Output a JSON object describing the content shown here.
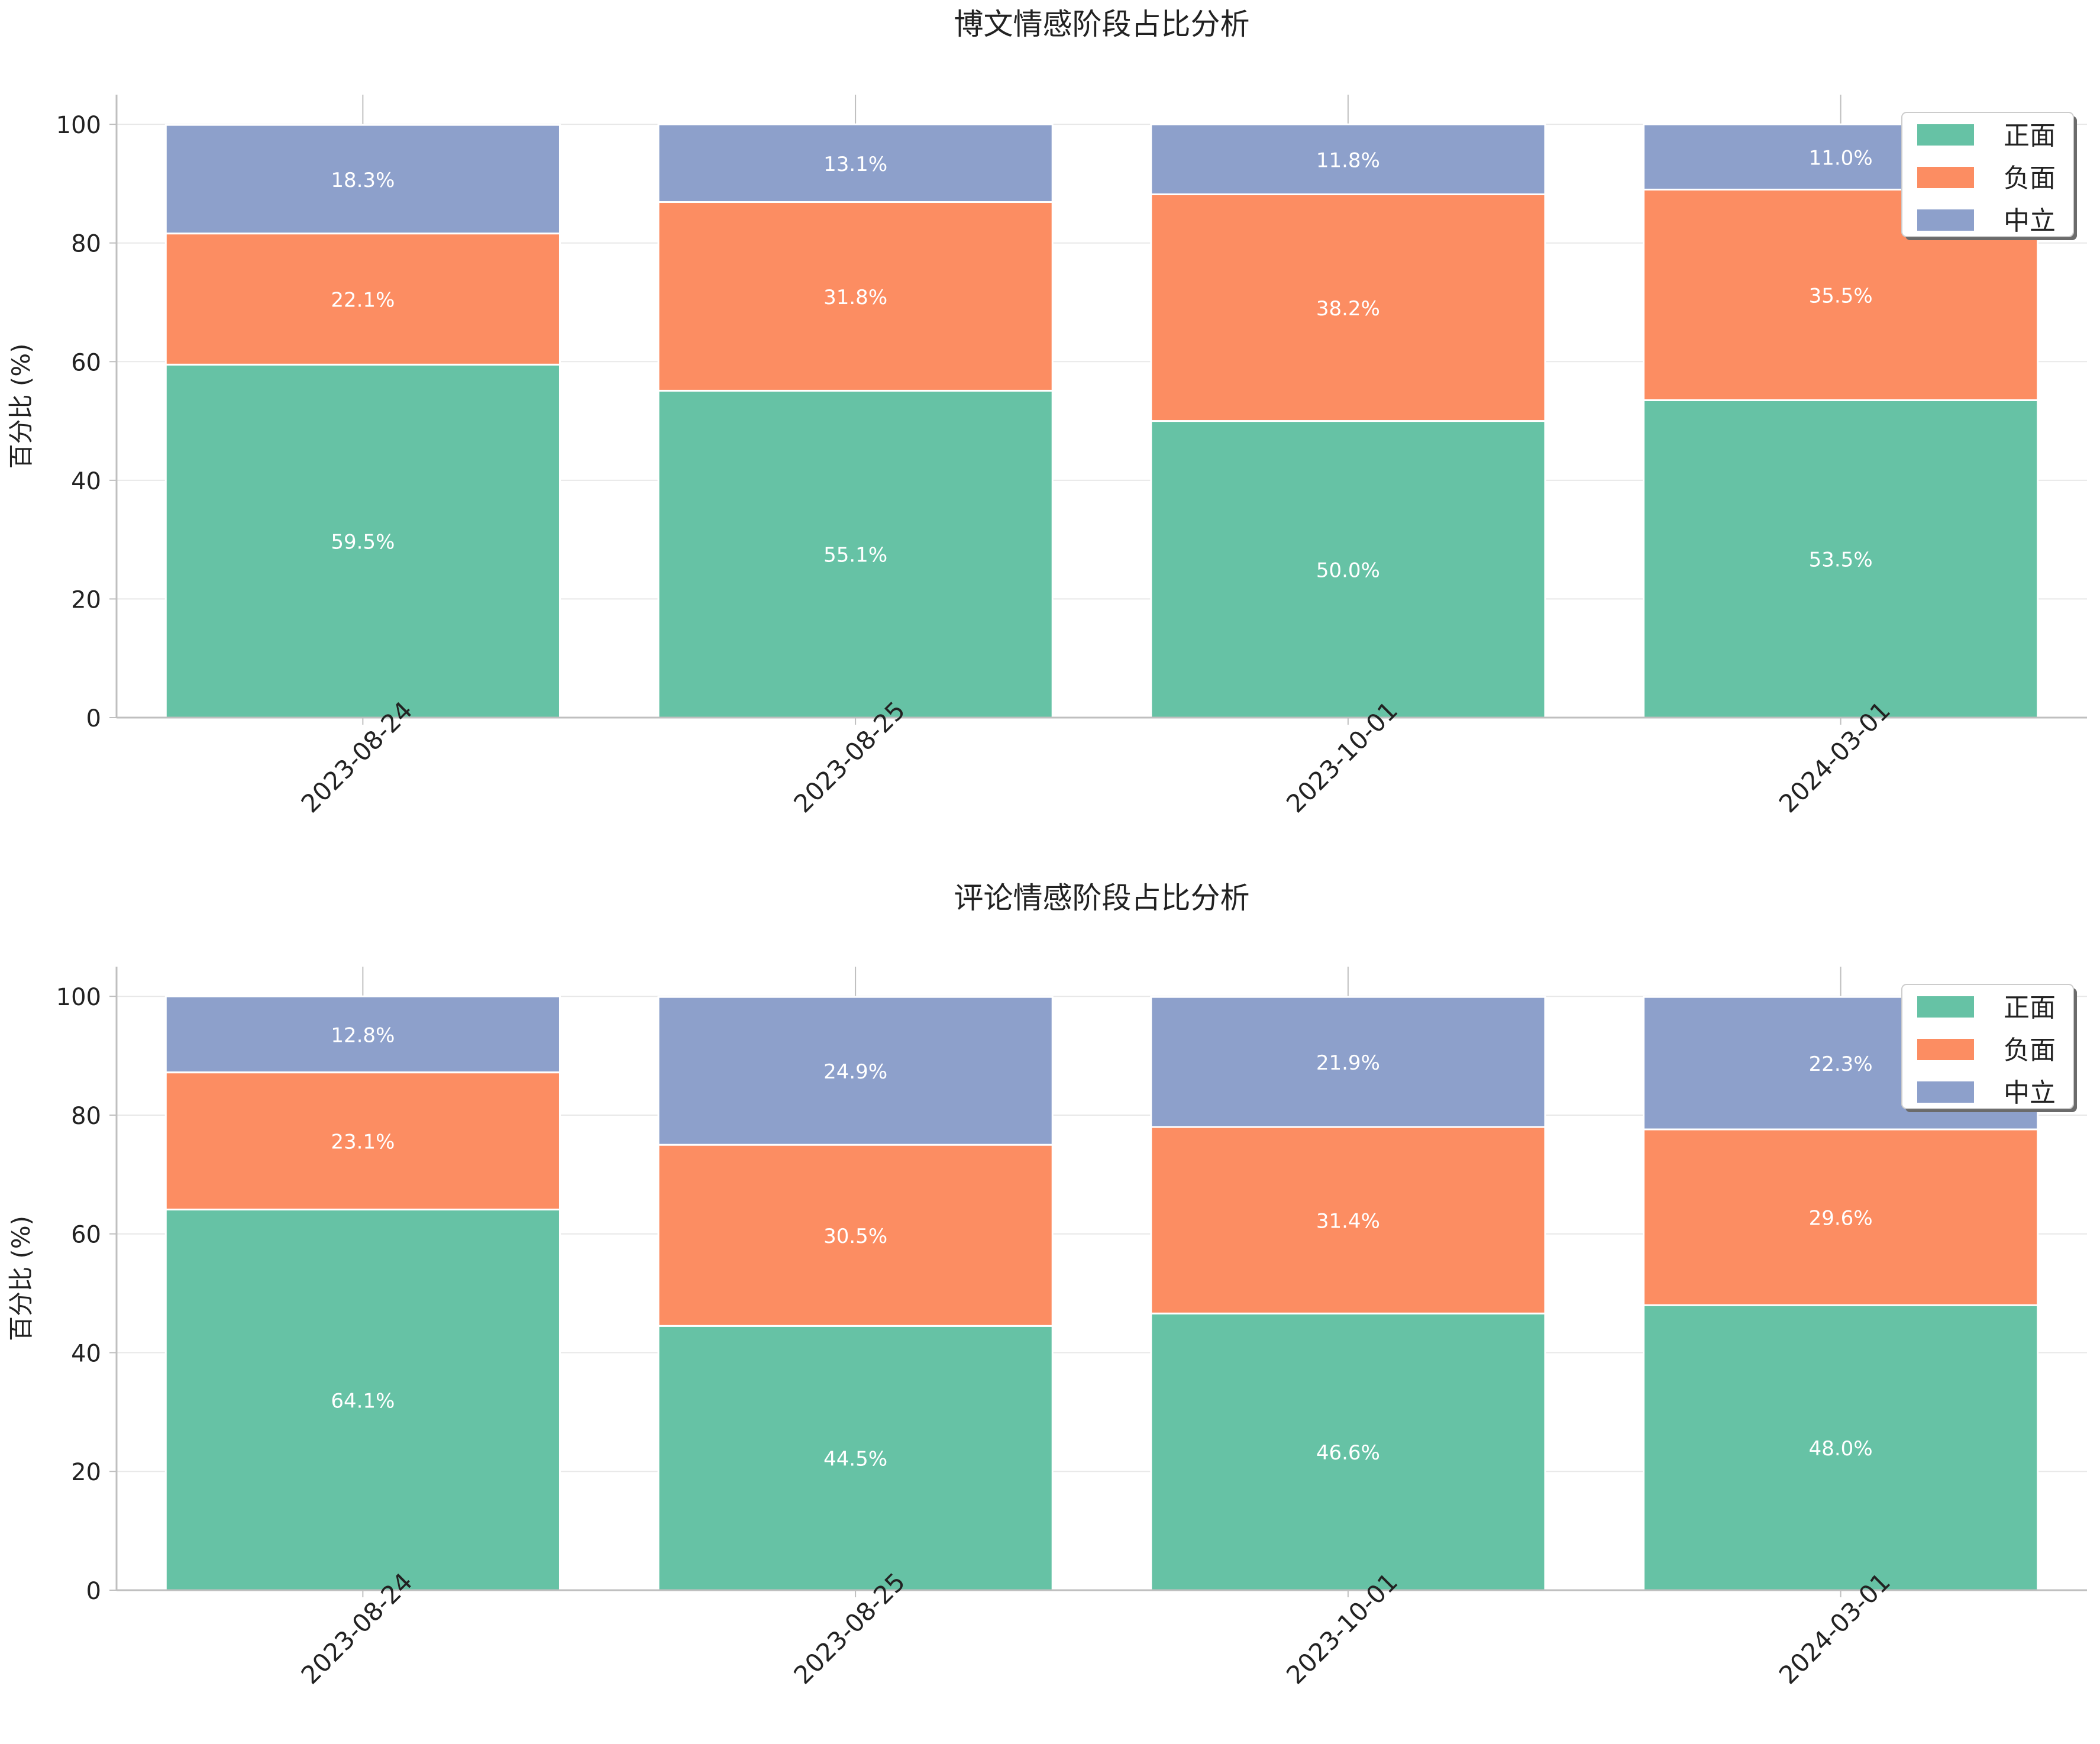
{
  "colors": {
    "positive": "#66c2a5",
    "negative": "#fc8d62",
    "neutral": "#8da0cb",
    "grid": "#e8e8e8",
    "axis": "#bfbfbf",
    "text": "#222222",
    "bar_label": "#ffffff"
  },
  "chart_data": [
    {
      "type": "bar",
      "stacked": true,
      "title": "博文情感阶段占比分析",
      "xlabel": "",
      "ylabel": "百分比 (%)",
      "ylim": [
        0,
        105
      ],
      "yticks": [
        0,
        20,
        40,
        60,
        80,
        100
      ],
      "grid": true,
      "legend_position": "top-right",
      "categories": [
        "2023-08-24",
        "2023-08-25",
        "2023-10-01",
        "2024-03-01"
      ],
      "series": [
        {
          "name": "正面",
          "color_key": "positive",
          "values": [
            59.5,
            55.1,
            50.0,
            53.5
          ],
          "labels": [
            "59.5%",
            "55.1%",
            "50.0%",
            "53.5%"
          ]
        },
        {
          "name": "负面",
          "color_key": "negative",
          "values": [
            22.1,
            31.8,
            38.2,
            35.5
          ],
          "labels": [
            "22.1%",
            "31.8%",
            "38.2%",
            "35.5%"
          ]
        },
        {
          "name": "中立",
          "color_key": "neutral",
          "values": [
            18.3,
            13.1,
            11.8,
            11.0
          ],
          "labels": [
            "18.3%",
            "13.1%",
            "11.8%",
            "11.0%"
          ]
        }
      ]
    },
    {
      "type": "bar",
      "stacked": true,
      "title": "评论情感阶段占比分析",
      "xlabel": "",
      "ylabel": "百分比 (%)",
      "ylim": [
        0,
        105
      ],
      "yticks": [
        0,
        20,
        40,
        60,
        80,
        100
      ],
      "grid": true,
      "legend_position": "top-right",
      "categories": [
        "2023-08-24",
        "2023-08-25",
        "2023-10-01",
        "2024-03-01"
      ],
      "series": [
        {
          "name": "正面",
          "color_key": "positive",
          "values": [
            64.1,
            44.5,
            46.6,
            48.0
          ],
          "labels": [
            "64.1%",
            "44.5%",
            "46.6%",
            "48.0%"
          ]
        },
        {
          "name": "负面",
          "color_key": "negative",
          "values": [
            23.1,
            30.5,
            31.4,
            29.6
          ],
          "labels": [
            "23.1%",
            "30.5%",
            "31.4%",
            "29.6%"
          ]
        },
        {
          "name": "中立",
          "color_key": "neutral",
          "values": [
            12.8,
            24.9,
            21.9,
            22.3
          ],
          "labels": [
            "12.8%",
            "24.9%",
            "21.9%",
            "22.3%"
          ]
        }
      ]
    }
  ]
}
